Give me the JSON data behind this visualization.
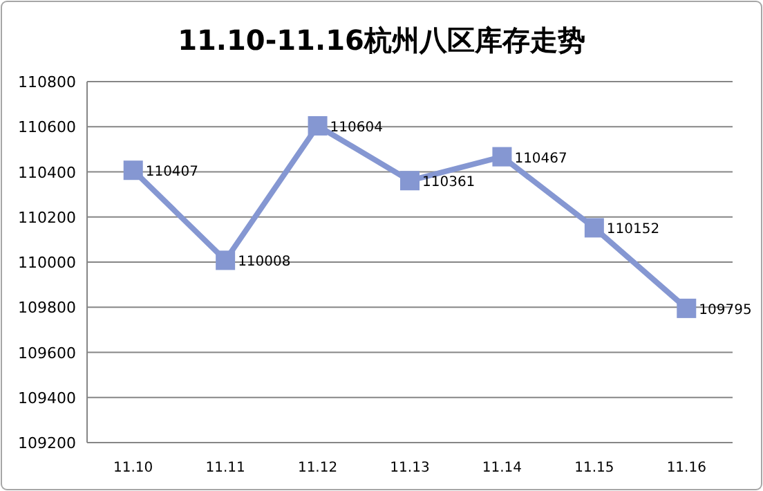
{
  "chart_data": {
    "type": "line",
    "title": "11.10-11.16杭州八区库存走势",
    "categories": [
      "11.10",
      "11.11",
      "11.12",
      "11.13",
      "11.14",
      "11.15",
      "11.16"
    ],
    "series": [
      {
        "color": "#8597d2",
        "values": [
          110407,
          110008,
          110604,
          110361,
          110467,
          110152,
          109795
        ]
      }
    ],
    "ylim": [
      109200,
      110800
    ],
    "yticks": [
      109200,
      109400,
      109600,
      109800,
      110000,
      110200,
      110400,
      110600,
      110800
    ],
    "grid": "y",
    "marker": "square",
    "data_labels": true,
    "legend": false
  }
}
